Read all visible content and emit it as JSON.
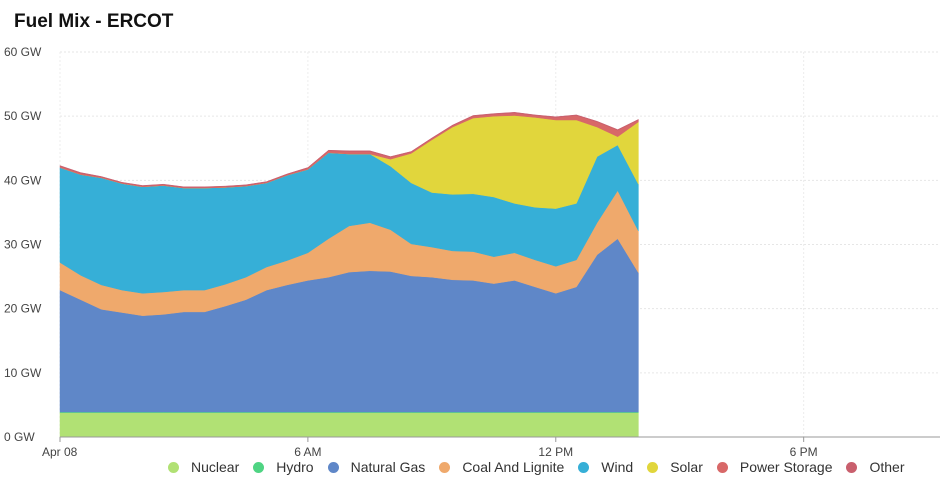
{
  "title": "Fuel Mix - ERCOT",
  "chart_data": {
    "type": "area",
    "stacked": true,
    "title": "Fuel Mix - ERCOT",
    "xlabel": "",
    "ylabel": "",
    "x_unit": "hours after midnight, Apr 08",
    "x": [
      0,
      0.5,
      1,
      1.5,
      2,
      2.5,
      3,
      3.5,
      4,
      4.5,
      5,
      5.5,
      6,
      6.5,
      7,
      7.5,
      8,
      8.5,
      9,
      9.5,
      10,
      10.5,
      11,
      11.5,
      12,
      12.5,
      13,
      13.5,
      14
    ],
    "xlim": [
      0,
      21.3
    ],
    "ylim": [
      0,
      60
    ],
    "x_ticks": [
      "Apr 08",
      "6 AM",
      "12 PM",
      "6 PM"
    ],
    "y_ticks": [
      "0 GW",
      "10 GW",
      "20 GW",
      "30 GW",
      "40 GW",
      "50 GW",
      "60 GW"
    ],
    "grid": true,
    "legend_position": "bottom",
    "series": [
      {
        "name": "Nuclear",
        "color": "#b1e174",
        "values": [
          3.8,
          3.8,
          3.8,
          3.8,
          3.8,
          3.8,
          3.8,
          3.8,
          3.8,
          3.8,
          3.8,
          3.8,
          3.8,
          3.8,
          3.8,
          3.8,
          3.8,
          3.8,
          3.8,
          3.8,
          3.8,
          3.8,
          3.8,
          3.8,
          3.8,
          3.8,
          3.8,
          3.8,
          3.8
        ]
      },
      {
        "name": "Hydro",
        "color": "#4fd483",
        "values": [
          0.1,
          0.1,
          0.1,
          0.1,
          0.1,
          0.1,
          0.1,
          0.1,
          0.1,
          0.1,
          0.1,
          0.1,
          0.1,
          0.1,
          0.1,
          0.1,
          0.1,
          0.1,
          0.1,
          0.1,
          0.1,
          0.1,
          0.1,
          0.1,
          0.1,
          0.1,
          0.1,
          0.1,
          0.1
        ]
      },
      {
        "name": "Natural Gas",
        "color": "#5f87c8",
        "values": [
          19.0,
          17.5,
          16.0,
          15.5,
          15.0,
          15.2,
          15.6,
          15.6,
          16.5,
          17.5,
          19.0,
          19.8,
          20.5,
          21.0,
          21.8,
          22.0,
          21.9,
          21.2,
          21.0,
          20.6,
          20.5,
          20.0,
          20.5,
          19.5,
          18.5,
          19.5,
          24.5,
          27.0,
          21.7
        ]
      },
      {
        "name": "Coal And Lignite",
        "color": "#efa96c",
        "values": [
          4.3,
          3.8,
          3.8,
          3.5,
          3.5,
          3.5,
          3.4,
          3.4,
          3.4,
          3.5,
          3.6,
          3.8,
          4.3,
          6.0,
          7.2,
          7.5,
          6.5,
          5.0,
          4.7,
          4.5,
          4.5,
          4.2,
          4.3,
          4.2,
          4.2,
          4.2,
          5.0,
          7.5,
          6.5
        ]
      },
      {
        "name": "Wind",
        "color": "#36afd7",
        "values": [
          14.8,
          15.7,
          16.7,
          16.6,
          16.6,
          16.6,
          15.9,
          15.9,
          15.1,
          14.2,
          13.1,
          13.3,
          13.0,
          13.4,
          11.2,
          10.7,
          9.9,
          9.5,
          8.5,
          8.8,
          9.0,
          9.3,
          7.7,
          8.2,
          9.0,
          8.8,
          10.3,
          7.1,
          7.3
        ]
      },
      {
        "name": "Solar",
        "color": "#e1d63c",
        "values": [
          0,
          0,
          0,
          0,
          0,
          0,
          0,
          0,
          0,
          0,
          0,
          0,
          0,
          0,
          0,
          0,
          1.1,
          4.6,
          8.2,
          10.5,
          11.8,
          12.6,
          13.7,
          14.0,
          13.8,
          13.0,
          4.6,
          1.3,
          9.7
        ]
      },
      {
        "name": "Power Storage",
        "color": "#d86868",
        "values": [
          0.2,
          0.2,
          0.1,
          0.1,
          0.1,
          0.1,
          0.1,
          0.1,
          0.1,
          0.1,
          0.1,
          0.1,
          0.2,
          0.3,
          0.4,
          0.4,
          0.3,
          0.2,
          0.2,
          0.2,
          0.3,
          0.3,
          0.4,
          0.3,
          0.4,
          0.7,
          0.8,
          1.0,
          0.3
        ]
      },
      {
        "name": "Other",
        "color": "#c95f6d",
        "values": [
          0.1,
          0.1,
          0.1,
          0.1,
          0.1,
          0.1,
          0.1,
          0.1,
          0.1,
          0.1,
          0.1,
          0.1,
          0.1,
          0.1,
          0.1,
          0.1,
          0.1,
          0.1,
          0.1,
          0.1,
          0.1,
          0.1,
          0.1,
          0.1,
          0.1,
          0.1,
          0.1,
          0.1,
          0.1
        ]
      }
    ]
  }
}
